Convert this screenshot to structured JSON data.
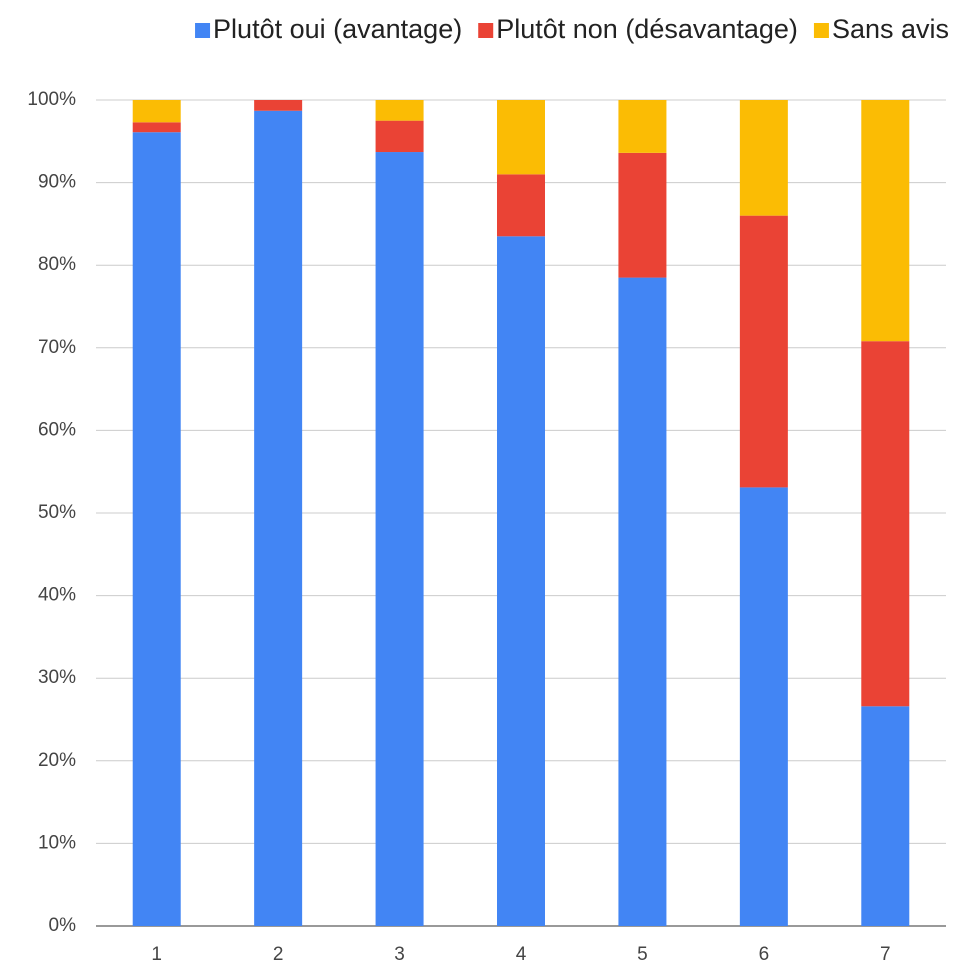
{
  "chart_data": {
    "type": "bar",
    "stacked": true,
    "categories": [
      "1",
      "2",
      "3",
      "4",
      "5",
      "6",
      "7"
    ],
    "series": [
      {
        "name": "Plutôt oui (avantage)",
        "color": "#4285f4",
        "values": [
          96.1,
          98.7,
          93.7,
          83.5,
          78.5,
          53.1,
          26.6
        ]
      },
      {
        "name": "Plutôt non (désavantage)",
        "color": "#ea4335",
        "values": [
          1.2,
          1.3,
          3.8,
          7.5,
          15.1,
          32.9,
          44.2
        ]
      },
      {
        "name": "Sans avis",
        "color": "#fbbc04",
        "values": [
          2.7,
          0,
          2.5,
          9.0,
          6.4,
          14.0,
          29.2
        ]
      }
    ],
    "ylim": [
      0,
      100
    ],
    "yticks": [
      {
        "value": 0,
        "label": "0%"
      },
      {
        "value": 10,
        "label": "10%"
      },
      {
        "value": 20,
        "label": "20%"
      },
      {
        "value": 30,
        "label": "30%"
      },
      {
        "value": 40,
        "label": "40%"
      },
      {
        "value": 50,
        "label": "50%"
      },
      {
        "value": 60,
        "label": "60%"
      },
      {
        "value": 70,
        "label": "70%"
      },
      {
        "value": 80,
        "label": "80%"
      },
      {
        "value": 90,
        "label": "90%"
      },
      {
        "value": 100,
        "label": "100%"
      }
    ],
    "grid": true,
    "legend": "top"
  }
}
